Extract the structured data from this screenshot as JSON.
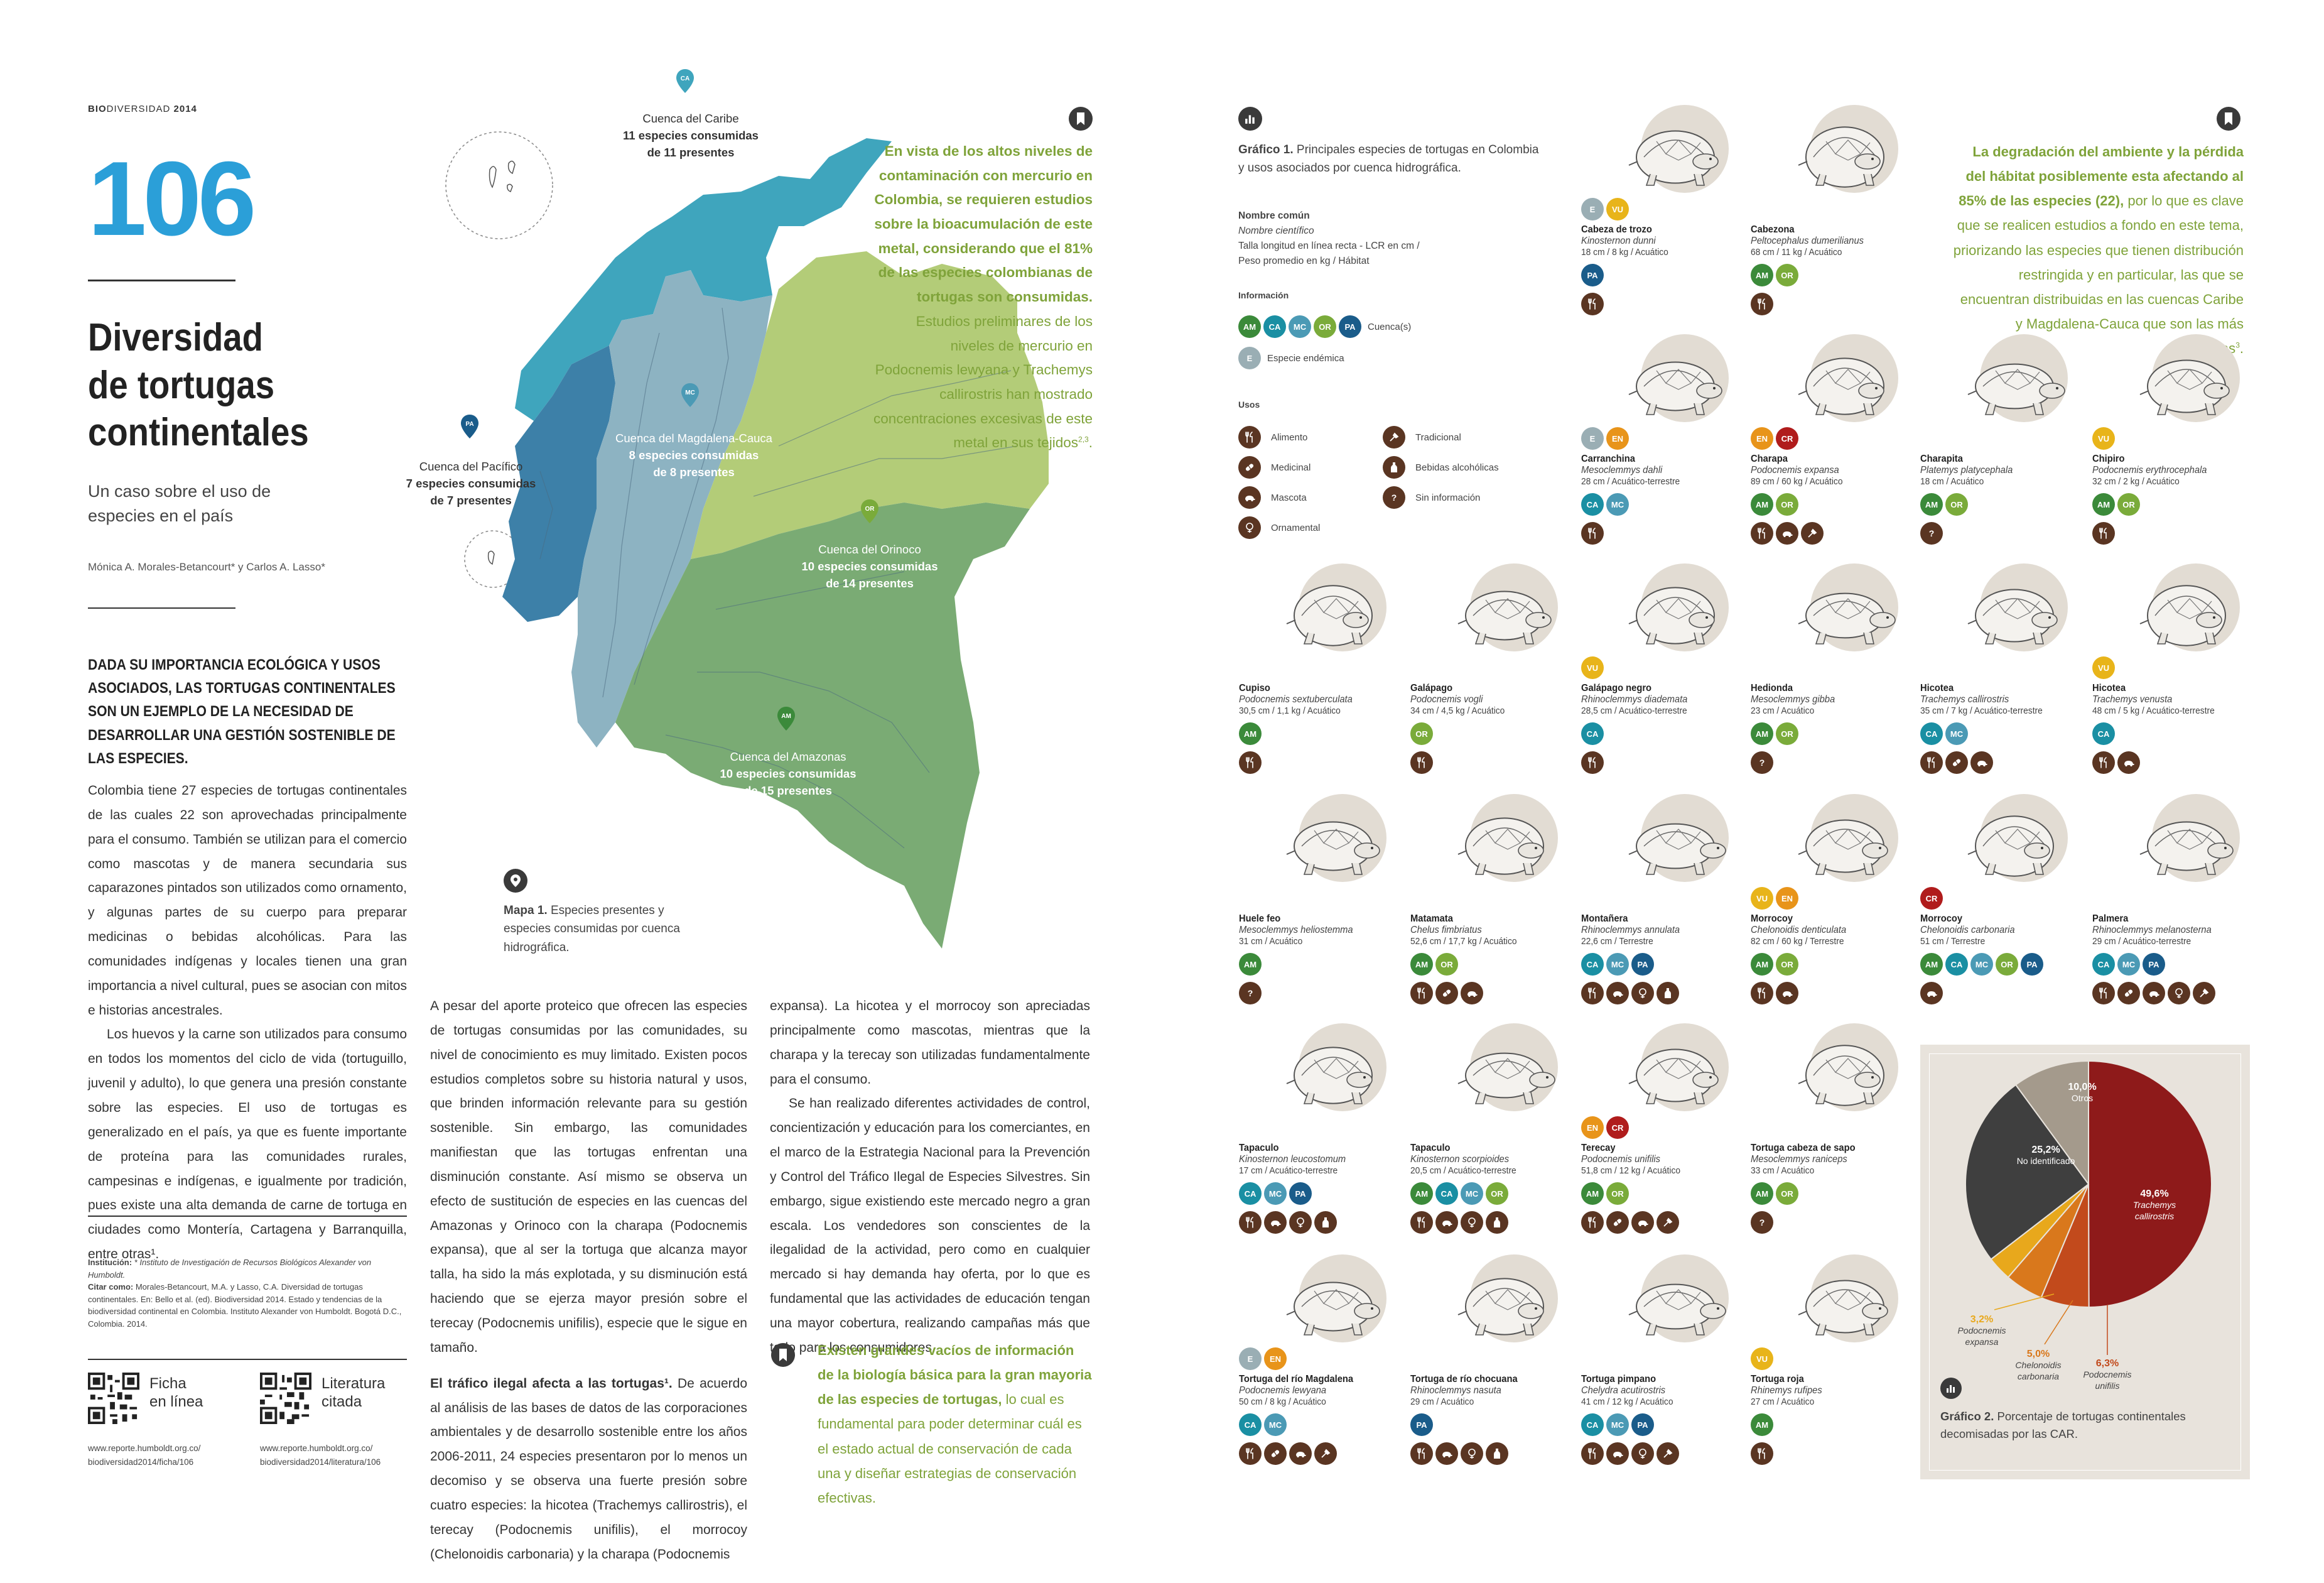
{
  "header": {
    "brand_bold": "BIO",
    "brand_rest": "DIVERSIDAD",
    "year": "2014"
  },
  "page_number": "106",
  "title_lines": [
    "Diversidad",
    "de tortugas",
    "continentales"
  ],
  "subtitle_lines": [
    "Un caso sobre el uso de",
    "especies en el país"
  ],
  "authors": "Mónica A. Morales-Betancourt* y Carlos A. Lasso*",
  "lead": "DADA SU IMPORTANCIA ECOLÓGICA Y USOS ASOCIADOS, LAS TORTUGAS CONTINENTALES SON UN EJEMPLO DE LA NECESIDAD DE DESARROLLAR UNA GESTIÓN SOSTENIBLE DE LAS ESPECIES.",
  "col1_paragraphs": [
    "Colombia tiene 27 especies de tortugas continentales de las cuales 22 son aprovechadas principalmente para el consumo. También se utilizan para el comercio como mascotas y de manera secundaria sus caparazones pintados son utilizados como ornamento, y algunas partes de su cuerpo para preparar medicinas o bebidas alcohólicas. Para las comunidades indígenas y locales tienen una gran importancia a nivel cultural, pues se asocian con mitos e historias ancestrales.",
    "Los huevos y la carne son utilizados para consumo en todos los momentos del ciclo de vida (tortuguillo, juvenil y adulto), lo que genera una presión constante sobre las especies. El uso de tortugas es generalizado en el país, ya que es fuente importante de proteína para las comunidades rurales, campesinas e indígenas, e igualmente por tradición, pues existe una alta demanda de carne de tortuga en ciudades como Montería, Cartagena y Barranquilla, entre otras¹."
  ],
  "credits": {
    "inst_label": "Institución:",
    "inst_text": " * Instituto de Investigación de Recursos Biológicos Alexander von Humboldt.",
    "cite_label": "Citar como:",
    "cite_text": " Morales-Betancourt, M.A. y Lasso, C.A. Diversidad de tortugas continentales. En: Bello et al. (ed). Biodiversidad 2014. Estado y tendencias de la biodiversidad continental en Colombia. Instituto Alexander von Humboldt. Bogotá D.C., Colombia. 2014."
  },
  "qr_links": [
    {
      "label_l1": "Ficha",
      "label_l2": "en línea",
      "url_l1": "www.reporte.humboldt.org.co/",
      "url_l2": "biodiversidad2014/ficha/106"
    },
    {
      "label_l1": "Literatura",
      "label_l2": "citada",
      "url_l1": "www.reporte.humboldt.org.co/",
      "url_l2": "biodiversidad2014/literatura/106"
    }
  ],
  "map": {
    "labels": [
      {
        "code": "CA",
        "name": "Cuenca del Caribe",
        "l2": "11 especies consumidas",
        "l3": "de 11 presentes"
      },
      {
        "code": "PA",
        "name": "Cuenca del Pacífico",
        "l2": "7 especies consumidas",
        "l3": "de 7 presentes"
      },
      {
        "code": "MC",
        "name": "Cuenca del Magdalena-Cauca",
        "l2": "8 especies consumidas",
        "l3": "de 8 presentes"
      },
      {
        "code": "OR",
        "name": "Cuenca del Orinoco",
        "l2": "10 especies consumidas",
        "l3": "de 14 presentes"
      },
      {
        "code": "AM",
        "name": "Cuenca del Amazonas",
        "l2": "10 especies consumidas",
        "l3": "de 15 presentes"
      }
    ],
    "caption_bold": "Mapa 1.",
    "caption_text": " Especies presentes y especies consumidas por cuenca hidrográfica.",
    "colors": {
      "caribe": "#3fa5bd",
      "pacifico": "#3d80a8",
      "magdalena": "#8db3c2",
      "orinoco": "#b3cc78",
      "amazonas": "#7aab74"
    }
  },
  "quote1": {
    "bold": "En vista de los altos niveles de contaminación con mercurio en Colombia, se requieren estudios sobre la bioacumulación de este metal, considerando que el 81% de las especies colombianas de tortugas son consumidas.",
    "normal": " Estudios preliminares de los niveles de mercurio en Podocnemis lewyana y Trachemys callirostris han mostrado concentraciones excesivas de este metal en sus tejidos",
    "sup": "2,3",
    "end": "."
  },
  "col2_paragraphs": [
    "A pesar del aporte proteico que ofrecen las especies de tortugas consumidas por las comunidades, su nivel de conocimiento es muy limitado. Existen pocos estudios completos sobre su historia natural y usos, que brinden información relevante para su gestión sostenible. Sin embargo, las comunidades manifiestan que las tortugas enfrentan una disminución constante. Así mismo se observa un efecto de sustitución de especies en las cuencas del Amazonas y Orinoco con la charapa (Podocnemis expansa), que al ser la tortuga que alcanza mayor talla, ha sido la más explotada, y su disminución está haciendo que se ejerza mayor presión sobre el terecay (Podocnemis unifilis), especie que le sigue en tamaño."
  ],
  "col2_heading": "El tráfico ilegal afecta a las tortugas¹.",
  "col2_after": " De acuerdo al análisis de las bases de datos de las corporaciones ambientales y de desarrollo sostenible entre los años 2006-2011, 24 especies presentaron por lo menos un decomiso y se observa una fuerte presión sobre cuatro especies: la hicotea (Trachemys callirostris), el terecay (Podocnemis unifilis), el morrocoy (Chelonoidis carbonaria) y la charapa (Podocnemis",
  "col3_paragraphs": [
    "expansa). La hicotea y el morrocoy son apreciadas principalmente como mascotas, mientras que la charapa y la terecay son utilizadas fundamentalmente para el consumo.",
    "Se han realizado diferentes actividades de control, concientización y educación para los comerciantes, en el marco de la Estrategia Nacional para la Prevención y Control del Tráfico Ilegal de Especies Silvestres. Sin embargo, sigue existiendo este mercado negro a gran escala. Los vendedores son conscientes de la ilegalidad de la actividad, pero como en cualquier mercado si hay demanda hay oferta, por lo que es fundamental que las actividades de educación tengan una mayor cobertura, realizando campañas más que todo para los consumidores."
  ],
  "quote2": {
    "bold": "Existen grandes vacíos de información de la biología básica para la gran mayoria de las especies de tortugas,",
    "normal": " lo cual es fundamental para poder determinar cuál es el estado actual de conservación de cada una y diseñar estrategias de conservación efectivas."
  },
  "quote3": {
    "bold": "La degradación del ambiente y la pérdida del hábitat posiblemente esta afectando al 85% de las especies (22),",
    "normal": " por lo que es clave que se realicen estudios a fondo en este tema, priorizando las especies que tienen distribución restringida y en particular, las que se encuentran distribuidas en las cuencas Caribe y Magdalena-Cauca que son las más afectadas",
    "sup": "3",
    "end": "."
  },
  "grafico1": {
    "caption_bold": "Gráfico 1.",
    "caption_text": " Principales especies de tortugas en Colombia y usos asociados por cuenca hidrográfica.",
    "legend_title": "Nombre común",
    "legend_sci": "Nombre científico",
    "legend_meas_l1": "Talla longitud en línea recta - LCR en cm /",
    "legend_meas_l2": "Peso promedio en kg / Hábitat",
    "info_title": "Información",
    "cuenca_label": "Cuenca(s)",
    "endemic_label": "Especie endémica",
    "usos_title": "Usos",
    "uses": [
      {
        "icon": "fork-knife-icon",
        "label": "Alimento"
      },
      {
        "icon": "medicine-icon",
        "label": "Medicinal"
      },
      {
        "icon": "pet-icon",
        "label": "Mascota"
      },
      {
        "icon": "ornament-icon",
        "label": "Ornamental"
      },
      {
        "icon": "traditional-icon",
        "label": "Tradicional"
      },
      {
        "icon": "bottle-icon",
        "label": "Bebidas alcohólicas"
      },
      {
        "icon": "question-icon",
        "label": "Sin información"
      }
    ]
  },
  "basin_colors": {
    "AM": "#3b8a3a",
    "CA": "#1a8fa3",
    "MC": "#4b9ab5",
    "OR": "#7aab3a",
    "PA": "#1a5c8a",
    "E": "#9aaeb4",
    "EN": "#e8941a",
    "CR": "#b01c1c",
    "VU": "#e8b41a"
  },
  "species": [
    {
      "name": "Cabeza de trozo",
      "sci": "Kinosternon dunni",
      "meas": "18 cm / 8 kg / Acuático",
      "status": [
        "E",
        "VU"
      ],
      "basins": [
        "PA"
      ],
      "uses": [
        "fork-knife-icon"
      ]
    },
    {
      "name": "Cabezona",
      "sci": "Peltocephalus dumerilianus",
      "meas": "68 cm / 11 kg / Acuático",
      "status": [],
      "basins": [
        "AM",
        "OR"
      ],
      "uses": [
        "fork-knife-icon"
      ]
    },
    {
      "name": "Carranchina",
      "sci": "Mesoclemmys dahli",
      "meas": "28 cm / Acuático-terrestre",
      "status": [
        "E",
        "EN"
      ],
      "basins": [
        "CA",
        "MC"
      ],
      "uses": [
        "fork-knife-icon"
      ]
    },
    {
      "name": "Charapa",
      "sci": "Podocnemis expansa",
      "meas": "89 cm / 60 kg / Acuático",
      "status": [
        "EN",
        "CR"
      ],
      "basins": [
        "AM",
        "OR"
      ],
      "uses": [
        "fork-knife-icon",
        "pet-icon",
        "traditional-icon"
      ]
    },
    {
      "name": "Charapita",
      "sci": "Platemys platycephala",
      "meas": "18 cm / Acuático",
      "status": [],
      "basins": [
        "AM",
        "OR"
      ],
      "uses": [
        "question-icon"
      ]
    },
    {
      "name": "Chipiro",
      "sci": "Podocnemis erythrocephala",
      "meas": "32 cm / 2 kg / Acuático",
      "status": [
        "VU"
      ],
      "basins": [
        "AM",
        "OR"
      ],
      "uses": [
        "fork-knife-icon"
      ]
    },
    {
      "name": "Cupiso",
      "sci": "Podocnemis sextuberculata",
      "meas": "30,5 cm / 1,1 kg / Acuático",
      "status": [],
      "basins": [
        "AM"
      ],
      "uses": [
        "fork-knife-icon"
      ]
    },
    {
      "name": "Galápago",
      "sci": "Podocnemis vogli",
      "meas": "34 cm / 4,5 kg / Acuático",
      "status": [],
      "basins": [
        "OR"
      ],
      "uses": [
        "fork-knife-icon"
      ]
    },
    {
      "name": "Galápago negro",
      "sci": "Rhinoclemmys diademata",
      "meas": "28,5 cm / Acuático-terrestre",
      "status": [
        "VU"
      ],
      "basins": [
        "CA"
      ],
      "uses": [
        "fork-knife-icon"
      ]
    },
    {
      "name": "Hedionda",
      "sci": "Mesoclemmys gibba",
      "meas": "23 cm / Acuático",
      "status": [],
      "basins": [
        "AM",
        "OR"
      ],
      "uses": [
        "question-icon"
      ]
    },
    {
      "name": "Hicotea",
      "sci": "Trachemys callirostris",
      "meas": "35 cm / 7 kg / Acuático-terrestre",
      "status": [],
      "basins": [
        "CA",
        "MC"
      ],
      "uses": [
        "fork-knife-icon",
        "medicine-icon",
        "pet-icon"
      ]
    },
    {
      "name": "Hicotea",
      "sci": "Trachemys venusta",
      "meas": "48 cm / 5 kg / Acuático-terrestre",
      "status": [
        "VU"
      ],
      "basins": [
        "CA"
      ],
      "uses": [
        "fork-knife-icon",
        "pet-icon"
      ]
    },
    {
      "name": "Huele feo",
      "sci": "Mesoclemmys heliostemma",
      "meas": "31 cm / Acuático",
      "status": [],
      "basins": [
        "AM"
      ],
      "uses": [
        "question-icon"
      ]
    },
    {
      "name": "Matamata",
      "sci": "Chelus fimbriatus",
      "meas": "52,6 cm / 17,7 kg / Acuático",
      "status": [],
      "basins": [
        "AM",
        "OR"
      ],
      "uses": [
        "fork-knife-icon",
        "medicine-icon",
        "pet-icon"
      ]
    },
    {
      "name": "Montañera",
      "sci": "Rhinoclemmys annulata",
      "meas": "22,6 cm / Terrestre",
      "status": [],
      "basins": [
        "CA",
        "MC",
        "PA"
      ],
      "uses": [
        "fork-knife-icon",
        "pet-icon",
        "ornament-icon",
        "bottle-icon"
      ]
    },
    {
      "name": "Morrocoy",
      "sci": "Chelonoidis denticulata",
      "meas": "82 cm / 60 kg / Terrestre",
      "status": [
        "VU",
        "EN"
      ],
      "basins": [
        "AM",
        "OR"
      ],
      "uses": [
        "fork-knife-icon",
        "pet-icon"
      ]
    },
    {
      "name": "Morrocoy",
      "sci": "Chelonoidis carbonaria",
      "meas": "51 cm / Terrestre",
      "status": [
        "CR"
      ],
      "basins": [
        "AM",
        "CA",
        "MC",
        "OR",
        "PA"
      ],
      "uses": [
        "pet-icon"
      ]
    },
    {
      "name": "Palmera",
      "sci": "Rhinoclemmys melanosterna",
      "meas": "29 cm / Acuático-terrestre",
      "status": [],
      "basins": [
        "CA",
        "MC",
        "PA"
      ],
      "uses": [
        "fork-knife-icon",
        "medicine-icon",
        "pet-icon",
        "ornament-icon",
        "traditional-icon"
      ]
    },
    {
      "name": "Tapaculo",
      "sci": "Kinosternon leucostomum",
      "meas": "17 cm / Acuático-terrestre",
      "status": [],
      "basins": [
        "CA",
        "MC",
        "PA"
      ],
      "uses": [
        "fork-knife-icon",
        "pet-icon",
        "ornament-icon",
        "bottle-icon"
      ]
    },
    {
      "name": "Tapaculo",
      "sci": "Kinosternon scorpioides",
      "meas": "20,5 cm / Acuático-terrestre",
      "status": [],
      "basins": [
        "AM",
        "CA",
        "MC",
        "OR"
      ],
      "uses": [
        "fork-knife-icon",
        "pet-icon",
        "ornament-icon",
        "bottle-icon"
      ]
    },
    {
      "name": "Terecay",
      "sci": "Podocnemis unifilis",
      "meas": "51,8 cm / 12 kg / Acuático",
      "status": [
        "EN",
        "CR"
      ],
      "basins": [
        "AM",
        "OR"
      ],
      "uses": [
        "fork-knife-icon",
        "medicine-icon",
        "pet-icon",
        "traditional-icon"
      ]
    },
    {
      "name": "Tortuga cabeza de sapo",
      "sci": "Mesoclemmys raniceps",
      "meas": "33 cm / Acuático",
      "status": [],
      "basins": [
        "AM",
        "OR"
      ],
      "uses": [
        "question-icon"
      ]
    },
    {
      "name": "Tortuga del río Magdalena",
      "sci": "Podocnemis lewyana",
      "meas": "50 cm / 8 kg / Acuático",
      "status": [
        "E",
        "EN"
      ],
      "basins": [
        "CA",
        "MC"
      ],
      "uses": [
        "fork-knife-icon",
        "medicine-icon",
        "pet-icon",
        "traditional-icon"
      ]
    },
    {
      "name": "Tortuga de río chocuana",
      "sci": "Rhinoclemmys nasuta",
      "meas": "29 cm / Acuático",
      "status": [],
      "basins": [
        "PA"
      ],
      "uses": [
        "fork-knife-icon",
        "pet-icon",
        "ornament-icon",
        "bottle-icon"
      ]
    },
    {
      "name": "Tortuga pimpano",
      "sci": "Chelydra acutirostris",
      "meas": "41 cm / 12 kg / Acuático",
      "status": [],
      "basins": [
        "CA",
        "MC",
        "PA"
      ],
      "uses": [
        "fork-knife-icon",
        "pet-icon",
        "ornament-icon",
        "traditional-icon"
      ]
    },
    {
      "name": "Tortuga roja",
      "sci": "Rhinemys rufipes",
      "meas": "27 cm / Acuático",
      "status": [
        "VU"
      ],
      "basins": [
        "AM"
      ],
      "uses": [
        "fork-knife-icon"
      ]
    }
  ],
  "grafico2": {
    "caption_bold": "Gráfico 2.",
    "caption_text": " Porcentaje de tortugas continentales decomisadas por las CAR."
  },
  "chart_data": {
    "type": "pie",
    "title": "",
    "slices": [
      {
        "pct": "49,6%",
        "value": 49.6,
        "label_l1": "Trachemys",
        "label_l2": "callirostris",
        "color": "#8e1a1a"
      },
      {
        "pct": "6,3%",
        "value": 6.3,
        "label_l1": "Podocnemis",
        "label_l2": "unifilis",
        "color": "#c24a1c"
      },
      {
        "pct": "5,0%",
        "value": 5.0,
        "label_l1": "Chelonoidis",
        "label_l2": "carbonaria",
        "color": "#d9781c"
      },
      {
        "pct": "3,2%",
        "value": 3.2,
        "label_l1": "Podocnemis",
        "label_l2": "expansa",
        "color": "#e8a81c"
      },
      {
        "pct": "25,2%",
        "value": 25.2,
        "label_l1": "No identificado",
        "label_l2": "",
        "color": "#3f3f3f"
      },
      {
        "pct": "10,0%",
        "value": 10.0,
        "label_l1": "Otros",
        "label_l2": "",
        "color": "#a49a8c"
      }
    ]
  }
}
